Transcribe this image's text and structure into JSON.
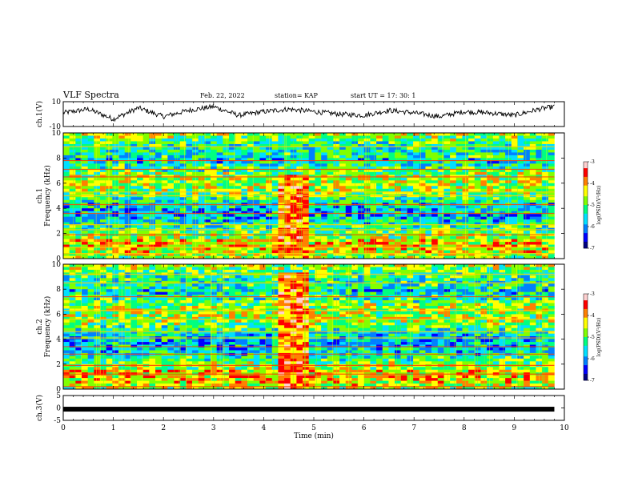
{
  "header": {
    "title": "VLF Spectra",
    "date": "Feb. 22, 2022",
    "station": "station= KAP",
    "start": "start  UT  =   17: 30: 1"
  },
  "colors": {
    "background": "#ffffff",
    "axis": "#000000",
    "colormap": [
      "#000080",
      "#0000ff",
      "#0080ff",
      "#00e0ff",
      "#00ff80",
      "#80ff00",
      "#ffff00",
      "#ff8000",
      "#ff0000",
      "#ffd0d0"
    ]
  },
  "chart_data": [
    {
      "type": "line",
      "panel": "ch1-waveform",
      "ylabel": "ch.1(V)",
      "ylim": [
        -10,
        10
      ],
      "yticks": [
        "10",
        "-10"
      ],
      "xlim": [
        0,
        10
      ],
      "x_range_data": [
        0,
        9.8
      ],
      "trace": "noisy oscillation, approx. -5 to +8 V",
      "approx_samples": {
        "x": [
          0,
          0.5,
          1,
          1.5,
          2,
          2.5,
          3,
          3.5,
          4,
          4.5,
          5,
          5.5,
          6,
          6.5,
          7,
          7.5,
          8,
          8.5,
          9,
          9.5,
          9.8
        ],
        "y": [
          1,
          4,
          -4,
          5,
          -2,
          3,
          6,
          -1,
          2,
          4,
          2,
          0,
          -1,
          3,
          1,
          -2,
          2,
          1,
          -1,
          4,
          6
        ]
      }
    },
    {
      "type": "heatmap",
      "panel": "ch1-spectrogram",
      "ylabel": "ch.1 Frequency (kHz)",
      "ylim": [
        0,
        10
      ],
      "yticks": [
        "0",
        "2",
        "4",
        "6",
        "8",
        "10"
      ],
      "xlim": [
        0,
        10
      ],
      "time_range_data": [
        0,
        9.8
      ],
      "colorbar": {
        "label": "log(PSD)(V²/Hz)",
        "ticks": [
          "-3",
          "-4",
          "-5",
          "-6",
          "-7"
        ],
        "range": [
          -7,
          -3
        ]
      },
      "horizontal_lines_kHz": [
        0.4,
        0.9,
        1.9,
        2.3,
        2.7,
        3.6,
        4.3,
        5.0,
        5.3,
        6.5,
        7.1,
        7.8,
        8.9
      ],
      "burst": {
        "t_start_min": 4.3,
        "t_end_min": 4.95,
        "f_max_kHz": 6.7
      }
    },
    {
      "type": "heatmap",
      "panel": "ch2-spectrogram",
      "ylabel": "ch.2 Frequency (kHz)",
      "ylim": [
        0,
        10
      ],
      "yticks": [
        "0",
        "2",
        "4",
        "6",
        "8",
        "10"
      ],
      "xlim": [
        0,
        10
      ],
      "time_range_data": [
        0,
        9.8
      ],
      "colorbar": {
        "label": "log(PSD)(V²/Hz)",
        "ticks": [
          "-3",
          "-4",
          "-5",
          "-6",
          "-7"
        ],
        "range": [
          -7,
          -3
        ]
      },
      "horizontal_lines_kHz": [
        0.2,
        1.2,
        1.9,
        2.8,
        3.4,
        4.1,
        4.6,
        5.6,
        6.3,
        7.4,
        8.5,
        9.2
      ],
      "burst": {
        "t_start_min": 4.3,
        "t_end_min": 4.95,
        "f_max_kHz": 9.4
      }
    },
    {
      "type": "line",
      "panel": "ch3-waveform",
      "ylabel": "ch.3(V)",
      "ylim": [
        -5,
        5
      ],
      "yticks": [
        "5",
        "0",
        "-5"
      ],
      "xlim": [
        0,
        10
      ],
      "x_range_data": [
        0,
        9.8
      ],
      "constant_value": -0.5,
      "xlabel": "Time (min)",
      "xticks": [
        "0",
        "1",
        "2",
        "3",
        "4",
        "5",
        "6",
        "7",
        "8",
        "9",
        "10"
      ]
    }
  ]
}
